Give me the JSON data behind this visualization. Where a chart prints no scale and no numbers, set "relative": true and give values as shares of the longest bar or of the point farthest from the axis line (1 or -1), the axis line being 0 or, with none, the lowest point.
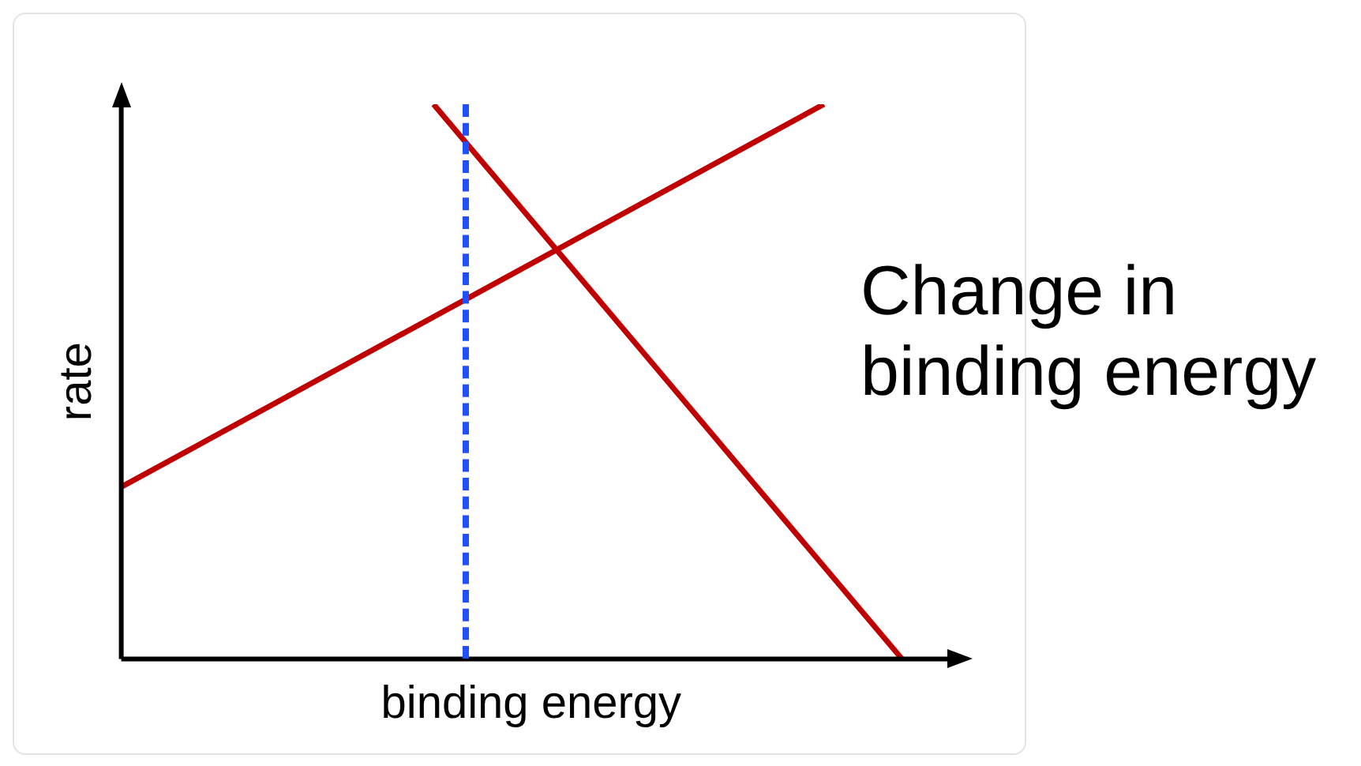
{
  "chart_data": {
    "type": "line",
    "relative": true,
    "xlabel": "binding energy",
    "ylabel": "rate",
    "marker": "none",
    "line_style": "solid",
    "categories": [
      null,
      null,
      null,
      null,
      null,
      null,
      null,
      null,
      null,
      null,
      null,
      null,
      null,
      null,
      null,
      null,
      null,
      null,
      null,
      null,
      null,
      null
    ],
    "series": [
      {
        "color": "#c00000",
        "values": [
          0.31,
          null,
          null,
          null,
          null,
          null,
          null,
          null,
          null,
          null,
          null,
          null,
          null,
          null,
          null,
          null,
          null,
          null,
          1,
          null,
          null,
          null
        ]
      },
      {
        "color": "#c00000",
        "values": [
          null,
          null,
          null,
          null,
          null,
          null,
          null,
          null,
          1,
          null,
          null,
          null,
          null,
          null,
          null,
          null,
          null,
          null,
          null,
          null,
          0,
          null
        ]
      }
    ],
    "annotations": [
      "Change in binding energy"
    ]
  }
}
